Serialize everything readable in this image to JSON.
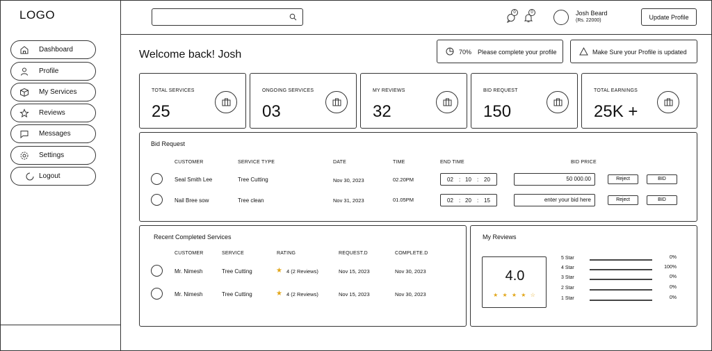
{
  "app": {
    "logo": "LOGO"
  },
  "sidebar": {
    "items": [
      {
        "label": "Dashboard",
        "icon": "home-icon"
      },
      {
        "label": "Profile",
        "icon": "user-icon"
      },
      {
        "label": "My Services",
        "icon": "box-icon"
      },
      {
        "label": "Reviews",
        "icon": "star-icon"
      },
      {
        "label": "Messages",
        "icon": "message-icon"
      },
      {
        "label": "Settings",
        "icon": "gear-icon"
      },
      {
        "label": "Logout",
        "icon": "spinner-icon"
      }
    ]
  },
  "header": {
    "search": {
      "placeholder": ""
    },
    "messages_badge": "0",
    "notifications_badge": "0",
    "user_name": "Josh Beard",
    "user_balance": "(Rs. 22000)",
    "update_profile_label": "Update Profile"
  },
  "welcome": {
    "title": "Welcome back! Josh",
    "profile_progress": "70%",
    "profile_notice": "Please complete your profile",
    "update_notice": "Make Sure your Profile is updated"
  },
  "stats": [
    {
      "label": "TOTAL SERVICES",
      "value": "25"
    },
    {
      "label": "ONGOING SERVICES",
      "value": "03"
    },
    {
      "label": "MY REVIEWS",
      "value": "32"
    },
    {
      "label": "BID REQUEST",
      "value": "150"
    },
    {
      "label": "TOTAL EARNINGS",
      "value": "25K +"
    }
  ],
  "bid_request": {
    "title": "Bid Request",
    "columns": {
      "customer": "CUSTOMER",
      "service_type": "SERVICE TYPE",
      "date": "DATE",
      "time": "TIME",
      "end_time": "END TIME",
      "bid_price": "BID PRICE"
    },
    "rows": [
      {
        "customer": "Seal Smith Lee",
        "service_type": "Tree Cutting",
        "date": "Nov 30, 2023",
        "time": "02.20PM",
        "end_h": "02",
        "end_m": "10",
        "end_s": "20",
        "bid_price": "50 000.00",
        "reject": "Reject",
        "bid": "BID"
      },
      {
        "customer": "Nail Bree sow",
        "service_type": "Tree clean",
        "date": "Nov 31, 2023",
        "time": "01.05PM",
        "end_h": "02",
        "end_m": "20",
        "end_s": "15",
        "bid_price": "enter your bid here",
        "reject": "Reject",
        "bid": "BID"
      }
    ]
  },
  "recent": {
    "title": "Recent Completed Services",
    "columns": {
      "customer": "CUSTOMER",
      "service": "SERVICE",
      "rating": "RATING",
      "request": "REQUEST.D",
      "complete": "COMPLETE.D"
    },
    "rows": [
      {
        "customer": "Mr. Nimesh",
        "service": "Tree Cutting",
        "rating": "4 (2 Reviews)",
        "request": "Nov  15, 2023",
        "complete": "Nov 30, 2023"
      },
      {
        "customer": "Mr. Nimesh",
        "service": "Tree Cutting",
        "rating": "4 (2 Reviews)",
        "request": "Nov  15, 2023",
        "complete": "Nov 30, 2023"
      }
    ]
  },
  "reviews": {
    "title": "My Reviews",
    "average": "4.0",
    "stars": "★ ★ ★ ★ ☆",
    "breakdown": [
      {
        "label": "5 Star",
        "pct": "0%"
      },
      {
        "label": "4 Star",
        "pct": "100%"
      },
      {
        "label": "3 Star",
        "pct": "0%"
      },
      {
        "label": "2 Star",
        "pct": "0%"
      },
      {
        "label": "1 Star",
        "pct": "0%"
      }
    ]
  },
  "colors": {
    "border": "#333333",
    "star": "#e2a619"
  }
}
